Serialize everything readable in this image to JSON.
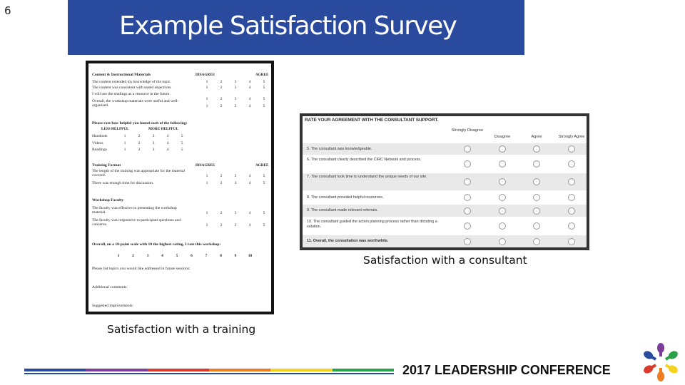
{
  "slide": {
    "number": "6",
    "title": "Example Satisfaction Survey"
  },
  "training_survey": {
    "caption": "Satisfaction with a training",
    "content_section": {
      "title": "Content & Instructional Materials",
      "disagree": "DISAGREE",
      "agree": "AGREE",
      "rows": [
        {
          "text": "The content extended my knowledge of the topic.",
          "scale": [
            "1",
            "2",
            "3",
            "4",
            "5"
          ]
        },
        {
          "text": "The content was consistent with stated objectives.",
          "scale": [
            "1",
            "2",
            "3",
            "4",
            "5"
          ]
        },
        {
          "text": "I will use the readings as a resource in the future.",
          "scale": [
            "1",
            "2",
            "3",
            "4",
            "5"
          ]
        },
        {
          "text": "Overall, the workshop materials were useful and well-organized.",
          "scale": [
            "1",
            "2",
            "3",
            "4",
            "5"
          ]
        }
      ]
    },
    "helpful_section": {
      "title": "Please rate how helpful you found each of the following:",
      "less": "LESS HELPFUL",
      "more": "MORE HELPFUL",
      "rows": [
        {
          "text": "Handouts",
          "scale": [
            "1",
            "2",
            "3",
            "4",
            "5"
          ]
        },
        {
          "text": "Videos",
          "scale": [
            "1",
            "2",
            "3",
            "4",
            "5"
          ]
        },
        {
          "text": "Readings",
          "scale": [
            "1",
            "2",
            "3",
            "4",
            "5"
          ]
        }
      ]
    },
    "format_section": {
      "title": "Training Format",
      "disagree": "DISAGREE",
      "agree": "AGREE",
      "rows": [
        {
          "text": "The length of the training was appropriate for the material covered.",
          "scale": [
            "1",
            "2",
            "3",
            "4",
            "5"
          ]
        },
        {
          "text": "There was enough time for discussion.",
          "scale": [
            "1",
            "2",
            "3",
            "4",
            "5"
          ]
        }
      ]
    },
    "faculty_section": {
      "title": "Workshop Faculty",
      "rows": [
        {
          "text": "The faculty was effective in presenting the workshop material.",
          "scale": [
            "1",
            "2",
            "3",
            "4",
            "5"
          ]
        },
        {
          "text": "The faculty was responsive to participant questions and concerns.",
          "scale": [
            "1",
            "2",
            "3",
            "4",
            "5"
          ]
        }
      ]
    },
    "overall": {
      "text": "Overall, on a 10-point scale with 10 the highest rating, I rate this workshop:",
      "scale": [
        "1",
        "2",
        "3",
        "4",
        "5",
        "6",
        "7",
        "8",
        "9",
        "10"
      ]
    },
    "open_questions": [
      "Please list topics you would like addressed in future sessions:",
      "Additional comments:",
      "Suggested improvements:"
    ]
  },
  "consultant_survey": {
    "caption": "Satisfaction with a consultant",
    "heading": "RATE YOUR AGREEMENT WITH THE CONSULTANT SUPPORT.",
    "columns": [
      "Strongly Disagree",
      "Disagree",
      "Agree",
      "Strongly Agree"
    ],
    "rows": [
      "5. The consultant was knowledgeable.",
      "6. The consultant clearly described the CIRC Network and process.",
      "7. The consultant took time to understand the unique needs of our site.",
      "8. The consultant provided helpful resources.",
      "9. The consultant made relevant referrals.",
      "10. The consultant guided the action planning process rather than dictating a solution.",
      "11. Overall, the consultation was worthwhile."
    ]
  },
  "footer": {
    "conference": "2017 LEADERSHIP CONFERENCE",
    "stripe_colors": [
      "#2a4a9e",
      "#7d3c98",
      "#d93a2b",
      "#ee7d22",
      "#f4d21f",
      "#2aa24a"
    ],
    "logo_colors": [
      "#7d3c98",
      "#2aa24a",
      "#f4d21f",
      "#ee7d22",
      "#d93a2b",
      "#2a4a9e"
    ]
  }
}
